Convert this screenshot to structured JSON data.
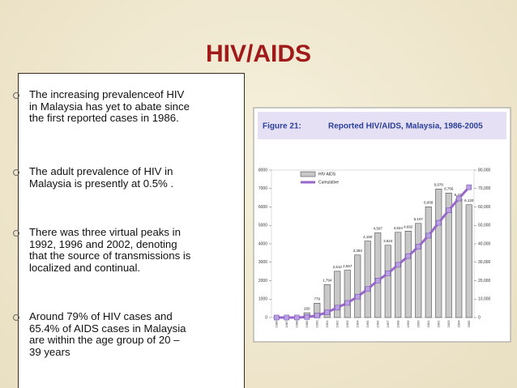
{
  "title": "HIV/AIDS",
  "bullets": [
    [
      "The increasing prevalenceof HIV",
      "in Malaysia has yet to abate since",
      "the first reported cases in 1986."
    ],
    [
      "The adult prevalence of HIV in",
      "Malaysia is presently at 0.5% ."
    ],
    [
      "There was three virtual peaks in",
      "1992, 1996 and 2002, denoting",
      "that the source of transmissions is",
      "localized and continual."
    ],
    [
      "Around 79% of HIV cases and",
      "65.4% of AIDS cases in Malaysia",
      "are within the age group of 20 –",
      "39 years"
    ]
  ],
  "chart_data": {
    "type": "bar",
    "title": "Figure 21:",
    "subtitle": "Reported HIV/AIDS, Malaysia, 1986-2005",
    "categories": [
      "1986",
      "1987",
      "1988",
      "1989",
      "1990",
      "1991",
      "1992",
      "1993",
      "1994",
      "1995",
      "1996",
      "1997",
      "1998",
      "1999",
      "2000",
      "2001",
      "2002",
      "2003",
      "2004",
      "2005"
    ],
    "series": [
      {
        "name": "HIV AIDS",
        "color": "#c8c8c8",
        "values": [
          3,
          5,
          9,
          260,
          779,
          1794,
          2512,
          2567,
          3393,
          4150,
          4597,
          3924,
          4624,
          4692,
          5107,
          6008,
          6978,
          6756,
          6427,
          6120
        ],
        "value_labels": [
          null,
          null,
          null,
          "260",
          "779",
          "1,794",
          "2,512",
          "2,567",
          "3,393",
          "4,150",
          "4,597",
          "3,924",
          "4,624",
          "4,692",
          "5,107",
          "6,008",
          "6,978",
          "6,756",
          "6,427",
          "6,120"
        ]
      },
      {
        "name": "Cumulative",
        "color": "#9966cc",
        "type": "line",
        "axis": "y2",
        "values": [
          3,
          8,
          17,
          277,
          1056,
          2850,
          5362,
          7929,
          11322,
          15472,
          20069,
          23993,
          28617,
          33309,
          38416,
          44424,
          51402,
          58158,
          64585,
          70705
        ]
      }
    ],
    "ylim": [
      0,
      8000
    ],
    "yticks": [
      0,
      1000,
      2000,
      3000,
      4000,
      5000,
      6000,
      7000,
      8000
    ],
    "y2lim": [
      0,
      80000
    ],
    "y2ticks": [
      0,
      {
        "value": 10000,
        "label": "10,000"
      },
      {
        "value": 20000,
        "label": "20,000"
      },
      {
        "value": 30000,
        "label": "30,000"
      },
      {
        "value": 40000,
        "label": "40,000"
      },
      {
        "value": 50000,
        "label": "50,000"
      },
      {
        "value": 60000,
        "label": "60,000"
      },
      {
        "value": 70000,
        "label": "70,000"
      },
      {
        "value": 80000,
        "label": "80,000"
      }
    ]
  }
}
